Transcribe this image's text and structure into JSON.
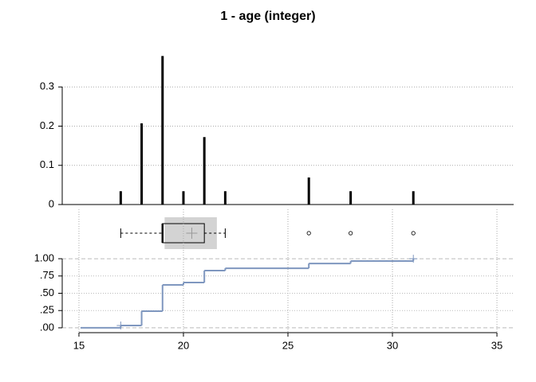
{
  "chart_data": [
    {
      "type": "bar",
      "title": "1 - age (integer)",
      "x": [
        17,
        18,
        19,
        20,
        21,
        22,
        26,
        28,
        31
      ],
      "values": [
        0.034,
        0.207,
        0.379,
        0.034,
        0.172,
        0.034,
        0.069,
        0.034,
        0.034
      ],
      "xlim": [
        14.2,
        35.8
      ],
      "ylim": [
        0,
        0.4
      ],
      "yticks": [
        0,
        0.1,
        0.2,
        0.3
      ],
      "grid": true,
      "color": "#000000"
    },
    {
      "type": "box",
      "min": 17,
      "q1": 19,
      "median": 19,
      "q3": 21,
      "max": 22,
      "mean": 20.4,
      "mean_ci": [
        19.1,
        21.6
      ],
      "outliers": [
        26,
        28,
        31
      ],
      "xlim": [
        14.2,
        35.8
      ],
      "color": "#d3d3d3"
    },
    {
      "type": "step",
      "x": [
        17,
        18,
        19,
        20,
        21,
        22,
        26,
        28,
        31
      ],
      "values": [
        0.034,
        0.241,
        0.621,
        0.655,
        0.828,
        0.862,
        0.931,
        0.966,
        1
      ],
      "xlim": [
        14.2,
        35.8
      ],
      "xticks": [
        15,
        20,
        25,
        30,
        35
      ],
      "ylim": [
        -0.07,
        1.07
      ],
      "yticks": [
        {
          "value": 0,
          "label": ".00"
        },
        {
          "value": 0.25,
          "label": ".25"
        },
        {
          "value": 0.5,
          "label": ".50"
        },
        {
          "value": 0.75,
          "label": ".75"
        },
        {
          "value": 1,
          "label": "1.00"
        }
      ],
      "grid": true,
      "color": "#7f97bf"
    }
  ]
}
